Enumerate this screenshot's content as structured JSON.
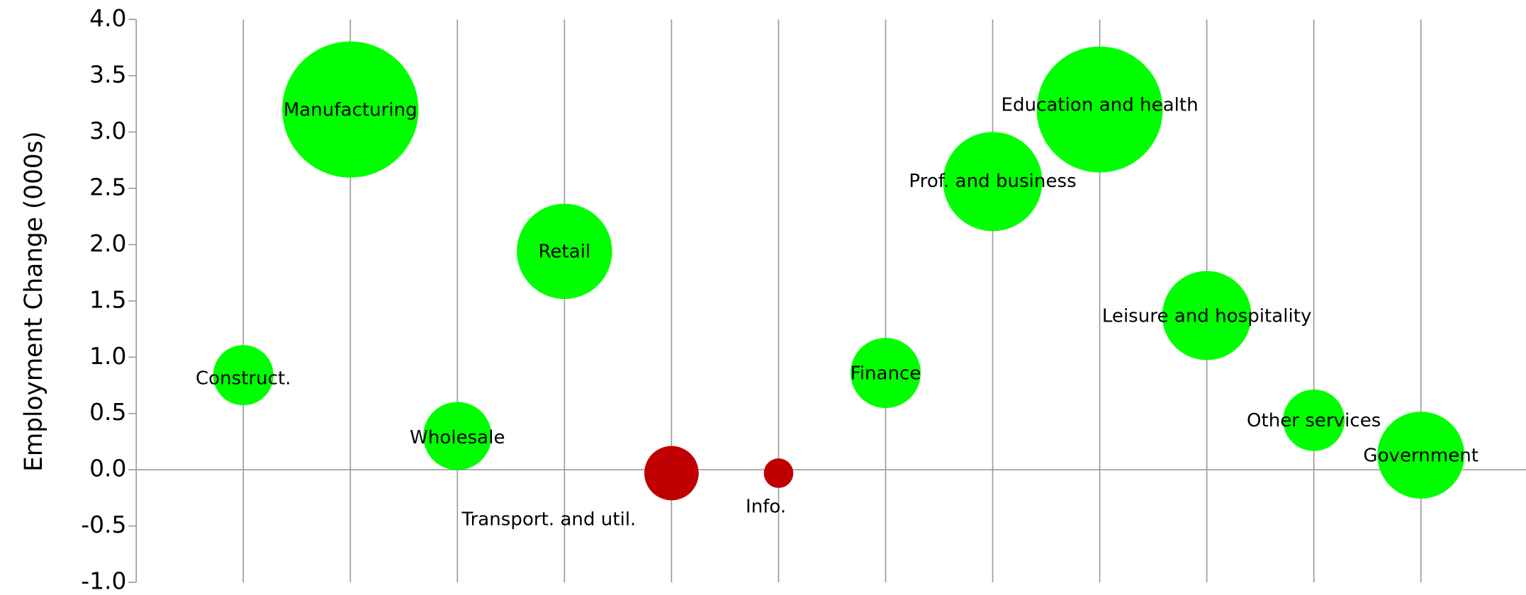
{
  "chart_data": {
    "type": "bubble",
    "y_label": "Employment Change (000s)",
    "labels": [
      "Construct.",
      "Manufacturing",
      "Wholesale",
      "Retail",
      "Transport. and util.",
      "Info.",
      "Finance",
      "Prof. and business",
      "Education and health",
      "Leisure and hospitality",
      "Other services",
      "Government"
    ],
    "x": [
      1,
      2,
      3,
      4,
      5,
      6,
      7,
      8,
      9,
      10,
      11,
      12
    ],
    "values": [
      0.84,
      3.2,
      0.3,
      1.94,
      -0.03,
      -0.03,
      0.86,
      2.56,
      3.2,
      1.37,
      0.44,
      0.13
    ],
    "sizes": [
      9.6,
      49,
      12.3,
      24,
      7.8,
      2.3,
      13,
      26,
      42,
      21,
      10,
      20
    ],
    "colors": [
      "#00ff00",
      "#00ff00",
      "#00ff00",
      "#00ff00",
      "#c00000",
      "#c00000",
      "#00ff00",
      "#00ff00",
      "#00ff00",
      "#00ff00",
      "#00ff00",
      "#00ff00"
    ],
    "xlim": [
      0,
      13
    ],
    "ylim": [
      -1.0,
      4.0
    ],
    "yticks": [
      {
        "value": -1.0,
        "label": "-1.0"
      },
      {
        "value": -0.5,
        "label": "-0.5"
      },
      {
        "value": 0.0,
        "label": "0.0"
      },
      {
        "value": 0.5,
        "label": "0.5"
      },
      {
        "value": 1.0,
        "label": "1.0"
      },
      {
        "value": 1.5,
        "label": "1.5"
      },
      {
        "value": 2.0,
        "label": "2.0"
      },
      {
        "value": 2.5,
        "label": "2.5"
      },
      {
        "value": 3.0,
        "label": "3.0"
      },
      {
        "value": 3.5,
        "label": "3.5"
      },
      {
        "value": 4.0,
        "label": "4.0"
      }
    ]
  }
}
